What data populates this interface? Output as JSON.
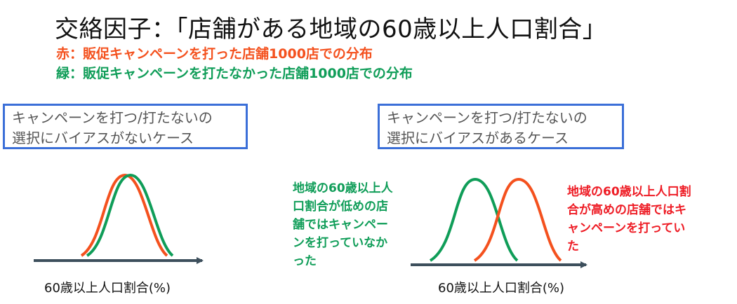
{
  "title": "交絡因子：「店舗がある地域の60歳以上人口割合」",
  "legend": {
    "red": "赤：販促キャンペーンを打った店舗1000店での分布",
    "green": "緑：販促キャンペーンを打たなかった店舗1000店での分布"
  },
  "left_panel": {
    "box_lines": [
      "キャンペーンを打つ/打たないの",
      "選択にバイアスがないケース"
    ],
    "axis_label": "60歳以上人口割合(%)"
  },
  "right_panel": {
    "box_lines": [
      "キャンペーンを打つ/打たないの",
      "選択にバイアスがあるケース"
    ],
    "axis_label": "60歳以上人口割合(%)",
    "green_note_lines": [
      "地域の60歳以上人",
      "口割合が低めの店",
      "舗ではキャンペー",
      "ンを打っていなか",
      "った"
    ],
    "red_note_lines": [
      "地域の60歳以上人口割",
      "合が高めの店舗ではキ",
      "ャンペーンを打ってい",
      "た"
    ]
  },
  "colors": {
    "red": "#f4511e",
    "green": "#0f9d58",
    "red_note": "#ee1c25",
    "box_border": "#3b6fd8",
    "axis": "#3d4f5c"
  }
}
